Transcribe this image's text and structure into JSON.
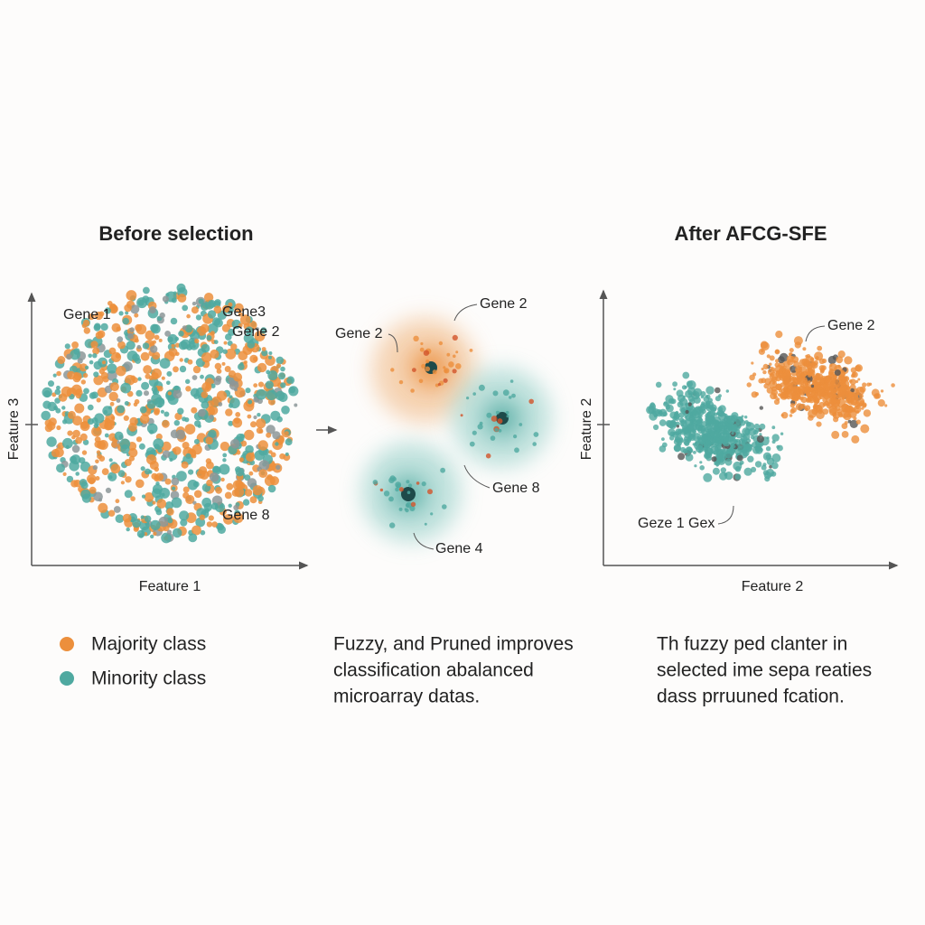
{
  "left": {
    "title": "Before selection",
    "y_label": "Feature 3",
    "x_label": "Feature 1",
    "labels": [
      "Gene 1",
      "Gene3",
      "Gene 2",
      "Gene 8"
    ]
  },
  "middle": {
    "labels": [
      "Gene 2",
      "Gene 2",
      "Gene 8",
      "Gene 4"
    ],
    "caption": [
      "Fuzzy, and Pruned improves",
      "classification abalanced",
      "microarray datas."
    ]
  },
  "right": {
    "title": "After AFCG-SFE",
    "y_label": "Feature 2",
    "x_label": "Feature 2",
    "labels": [
      "Gene 2",
      "Geze 1 Gex"
    ],
    "caption": [
      "Th fuzzy ped clanter in",
      "selected ime sepa reaties",
      "dass prruuned fcation."
    ]
  },
  "legend": [
    "Majority class",
    "Minority class"
  ]
}
